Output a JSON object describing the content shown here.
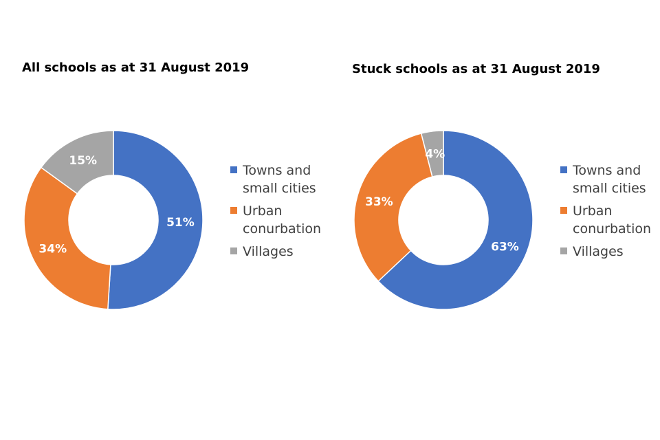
{
  "chart_data": [
    {
      "type": "pie",
      "variant": "donut",
      "title": "All schools as at 31 August 2019",
      "categories": [
        "Towns and small cities",
        "Urban conurbation",
        "Villages"
      ],
      "legend_lines": [
        [
          "Towns and",
          "small cities"
        ],
        [
          "Urban",
          "conurbation"
        ],
        [
          "Villages"
        ]
      ],
      "values": [
        51,
        34,
        15
      ],
      "data_labels": [
        "51%",
        "34%",
        "15%"
      ],
      "colors": [
        "#4472c4",
        "#ed7d31",
        "#a5a5a5"
      ],
      "legend_position": "right"
    },
    {
      "type": "pie",
      "variant": "donut",
      "title": "Stuck schools as at 31 August 2019",
      "categories": [
        "Towns and small cities",
        "Urban conurbation",
        "Villages"
      ],
      "legend_lines": [
        [
          "Towns and",
          "small cities"
        ],
        [
          "Urban",
          "conurbation"
        ],
        [
          "Villages"
        ]
      ],
      "values": [
        63,
        33,
        4
      ],
      "data_labels": [
        "63%",
        "33%",
        "4%"
      ],
      "colors": [
        "#4472c4",
        "#ed7d31",
        "#a5a5a5"
      ],
      "legend_position": "right"
    }
  ]
}
